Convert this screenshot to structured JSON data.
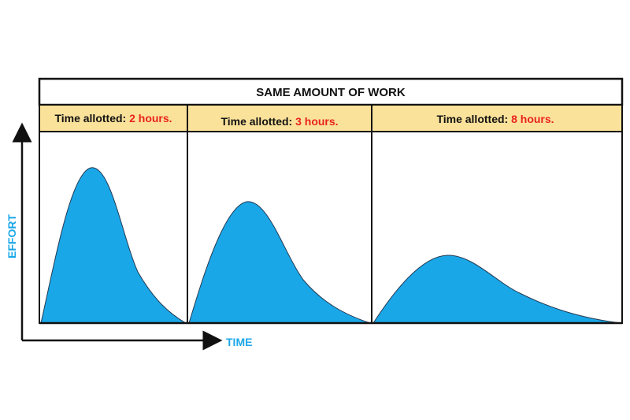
{
  "title": "SAME AMOUNT OF WORK",
  "axes": {
    "y_label": "EFFORT",
    "x_label": "TIME"
  },
  "panels": [
    {
      "prefix": "Time allotted: ",
      "value": "2 hours."
    },
    {
      "prefix": "Time allotted: ",
      "value": "3 hours."
    },
    {
      "prefix": "Time allotted: ",
      "value": "8 hours."
    }
  ],
  "colors": {
    "curve_fill": "#1AA7E8",
    "header_band": "#FBE29A",
    "highlight_text": "#E8231C",
    "axis_label": "#1AA7E8",
    "frame": "#111111"
  }
}
